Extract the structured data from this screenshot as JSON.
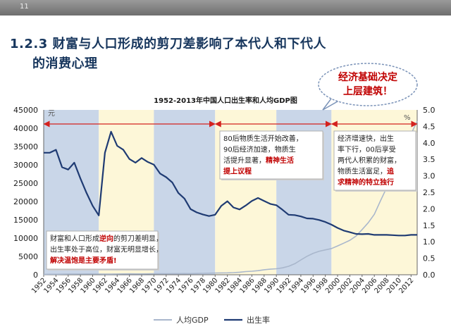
{
  "slide": {
    "number": "11",
    "title_line1": "1.2.3 财富与人口形成的剪刀差影响了本代人和下代人",
    "title_line2": "的消费心理",
    "bubble_line1": "经济基础决定",
    "bubble_line2": "上层建筑！"
  },
  "colors": {
    "title": "#17365d",
    "gdp_line": "#a9b7cc",
    "birth_line": "#1f3b73",
    "band_blue": "#c9d6e8",
    "band_yellow": "#fdf7d8",
    "arrow": "#d4221e",
    "emphasis": "#c00000"
  },
  "chart_data": {
    "type": "line",
    "title": "1952-2013年中国人口出生率和人均GDP图",
    "x": [
      1952,
      1953,
      1954,
      1955,
      1956,
      1957,
      1958,
      1959,
      1960,
      1961,
      1962,
      1963,
      1964,
      1965,
      1966,
      1967,
      1968,
      1969,
      1970,
      1971,
      1972,
      1973,
      1974,
      1975,
      1976,
      1977,
      1978,
      1979,
      1980,
      1981,
      1982,
      1983,
      1984,
      1985,
      1986,
      1987,
      1988,
      1989,
      1990,
      1991,
      1992,
      1993,
      1994,
      1995,
      1996,
      1997,
      1998,
      1999,
      2000,
      2001,
      2002,
      2003,
      2004,
      2005,
      2006,
      2007,
      2008,
      2009,
      2010,
      2011,
      2012,
      2013
    ],
    "x_tick_labels": [
      "1952",
      "1954",
      "1956",
      "1958",
      "1960",
      "1962",
      "1964",
      "1966",
      "1968",
      "1970",
      "1972",
      "1974",
      "1976",
      "1978",
      "1980",
      "1982",
      "1984",
      "1986",
      "1988",
      "1990",
      "1992",
      "1994",
      "1996",
      "1998",
      "2000",
      "2002",
      "2004",
      "2006",
      "2008",
      "2010",
      "2012"
    ],
    "left_unit": "元",
    "right_unit": "%",
    "left_ylim": [
      0,
      45000
    ],
    "left_ticks": [
      "0",
      "5000",
      "10000",
      "15000",
      "20000",
      "25000",
      "30000",
      "35000",
      "40000",
      "45000"
    ],
    "right_ylim": [
      0,
      5.0
    ],
    "right_ticks": [
      "0.0",
      "0.5",
      "1.0",
      "1.5",
      "2.0",
      "2.5",
      "3.0",
      "3.5",
      "4.0",
      "4.5",
      "5.0"
    ],
    "series": [
      {
        "name": "人均GDP",
        "axis": "left",
        "values": [
          119,
          144,
          144,
          150,
          165,
          168,
          200,
          216,
          218,
          185,
          173,
          181,
          208,
          240,
          254,
          235,
          222,
          243,
          275,
          288,
          292,
          309,
          310,
          327,
          316,
          339,
          381,
          419,
          463,
          492,
          528,
          583,
          695,
          858,
          963,
          1112,
          1366,
          1519,
          1644,
          1893,
          2311,
          2998,
          4044,
          5046,
          5846,
          6420,
          6796,
          7159,
          7858,
          8622,
          9398,
          10542,
          12336,
          14185,
          16500,
          20169,
          23708,
          25608,
          30015,
          35181,
          38420,
          41908
        ]
      },
      {
        "name": "出生率",
        "axis": "right",
        "values": [
          3.7,
          3.7,
          3.79,
          3.26,
          3.19,
          3.4,
          2.92,
          2.48,
          2.09,
          1.8,
          3.7,
          4.34,
          3.91,
          3.79,
          3.51,
          3.4,
          3.54,
          3.42,
          3.34,
          3.07,
          2.96,
          2.8,
          2.48,
          2.31,
          1.99,
          1.89,
          1.83,
          1.78,
          1.82,
          2.09,
          2.23,
          2.04,
          1.98,
          2.1,
          2.24,
          2.33,
          2.24,
          2.15,
          2.11,
          1.97,
          1.82,
          1.81,
          1.77,
          1.71,
          1.7,
          1.66,
          1.6,
          1.52,
          1.42,
          1.34,
          1.29,
          1.24,
          1.23,
          1.24,
          1.21,
          1.21,
          1.21,
          1.2,
          1.19,
          1.19,
          1.21,
          1.21
        ]
      }
    ],
    "bands": [
      {
        "from": 1952,
        "to": 1961,
        "color": "blue"
      },
      {
        "from": 1961,
        "to": 1970,
        "color": "yellow"
      },
      {
        "from": 1970,
        "to": 1980,
        "color": "blue"
      },
      {
        "from": 1980,
        "to": 1990,
        "color": "yellow"
      },
      {
        "from": 1990,
        "to": 1999,
        "color": "blue"
      },
      {
        "from": 1999,
        "to": 2013,
        "color": "yellow"
      }
    ],
    "arrows": [
      {
        "from": 1952,
        "to": 1980
      },
      {
        "from": 1980,
        "to": 1999
      },
      {
        "from": 1999,
        "to": 2013
      }
    ],
    "annotations": [
      {
        "id": "box1",
        "lines": [
          [
            {
              "t": "财富和人口形成"
            },
            {
              "t": "逆向",
              "em": true
            },
            {
              "t": "的剪刀差明显，"
            }
          ],
          [
            {
              "t": "出生率处于高位，财富无明显增长，"
            }
          ],
          [
            {
              "t": "解决温饱是主要矛盾!",
              "em": true
            }
          ]
        ]
      },
      {
        "id": "box2",
        "lines": [
          [
            {
              "t": "80后物质生活开始改善，"
            }
          ],
          [
            {
              "t": "90后经济加速，物质生"
            }
          ],
          [
            {
              "t": "活提升显著，"
            },
            {
              "t": "精神生活",
              "em": true
            }
          ],
          [
            {
              "t": "提上议程",
              "em": true
            }
          ]
        ]
      },
      {
        "id": "box3",
        "lines": [
          [
            {
              "t": "经济增速快，出生"
            }
          ],
          [
            {
              "t": "率下行，00后享受"
            }
          ],
          [
            {
              "t": "两代人积累的财富，"
            }
          ],
          [
            {
              "t": "物质生活富足，"
            },
            {
              "t": "追",
              "em": true
            }
          ],
          [
            {
              "t": "求精神的特立独行",
              "em": true
            }
          ]
        ]
      }
    ]
  }
}
